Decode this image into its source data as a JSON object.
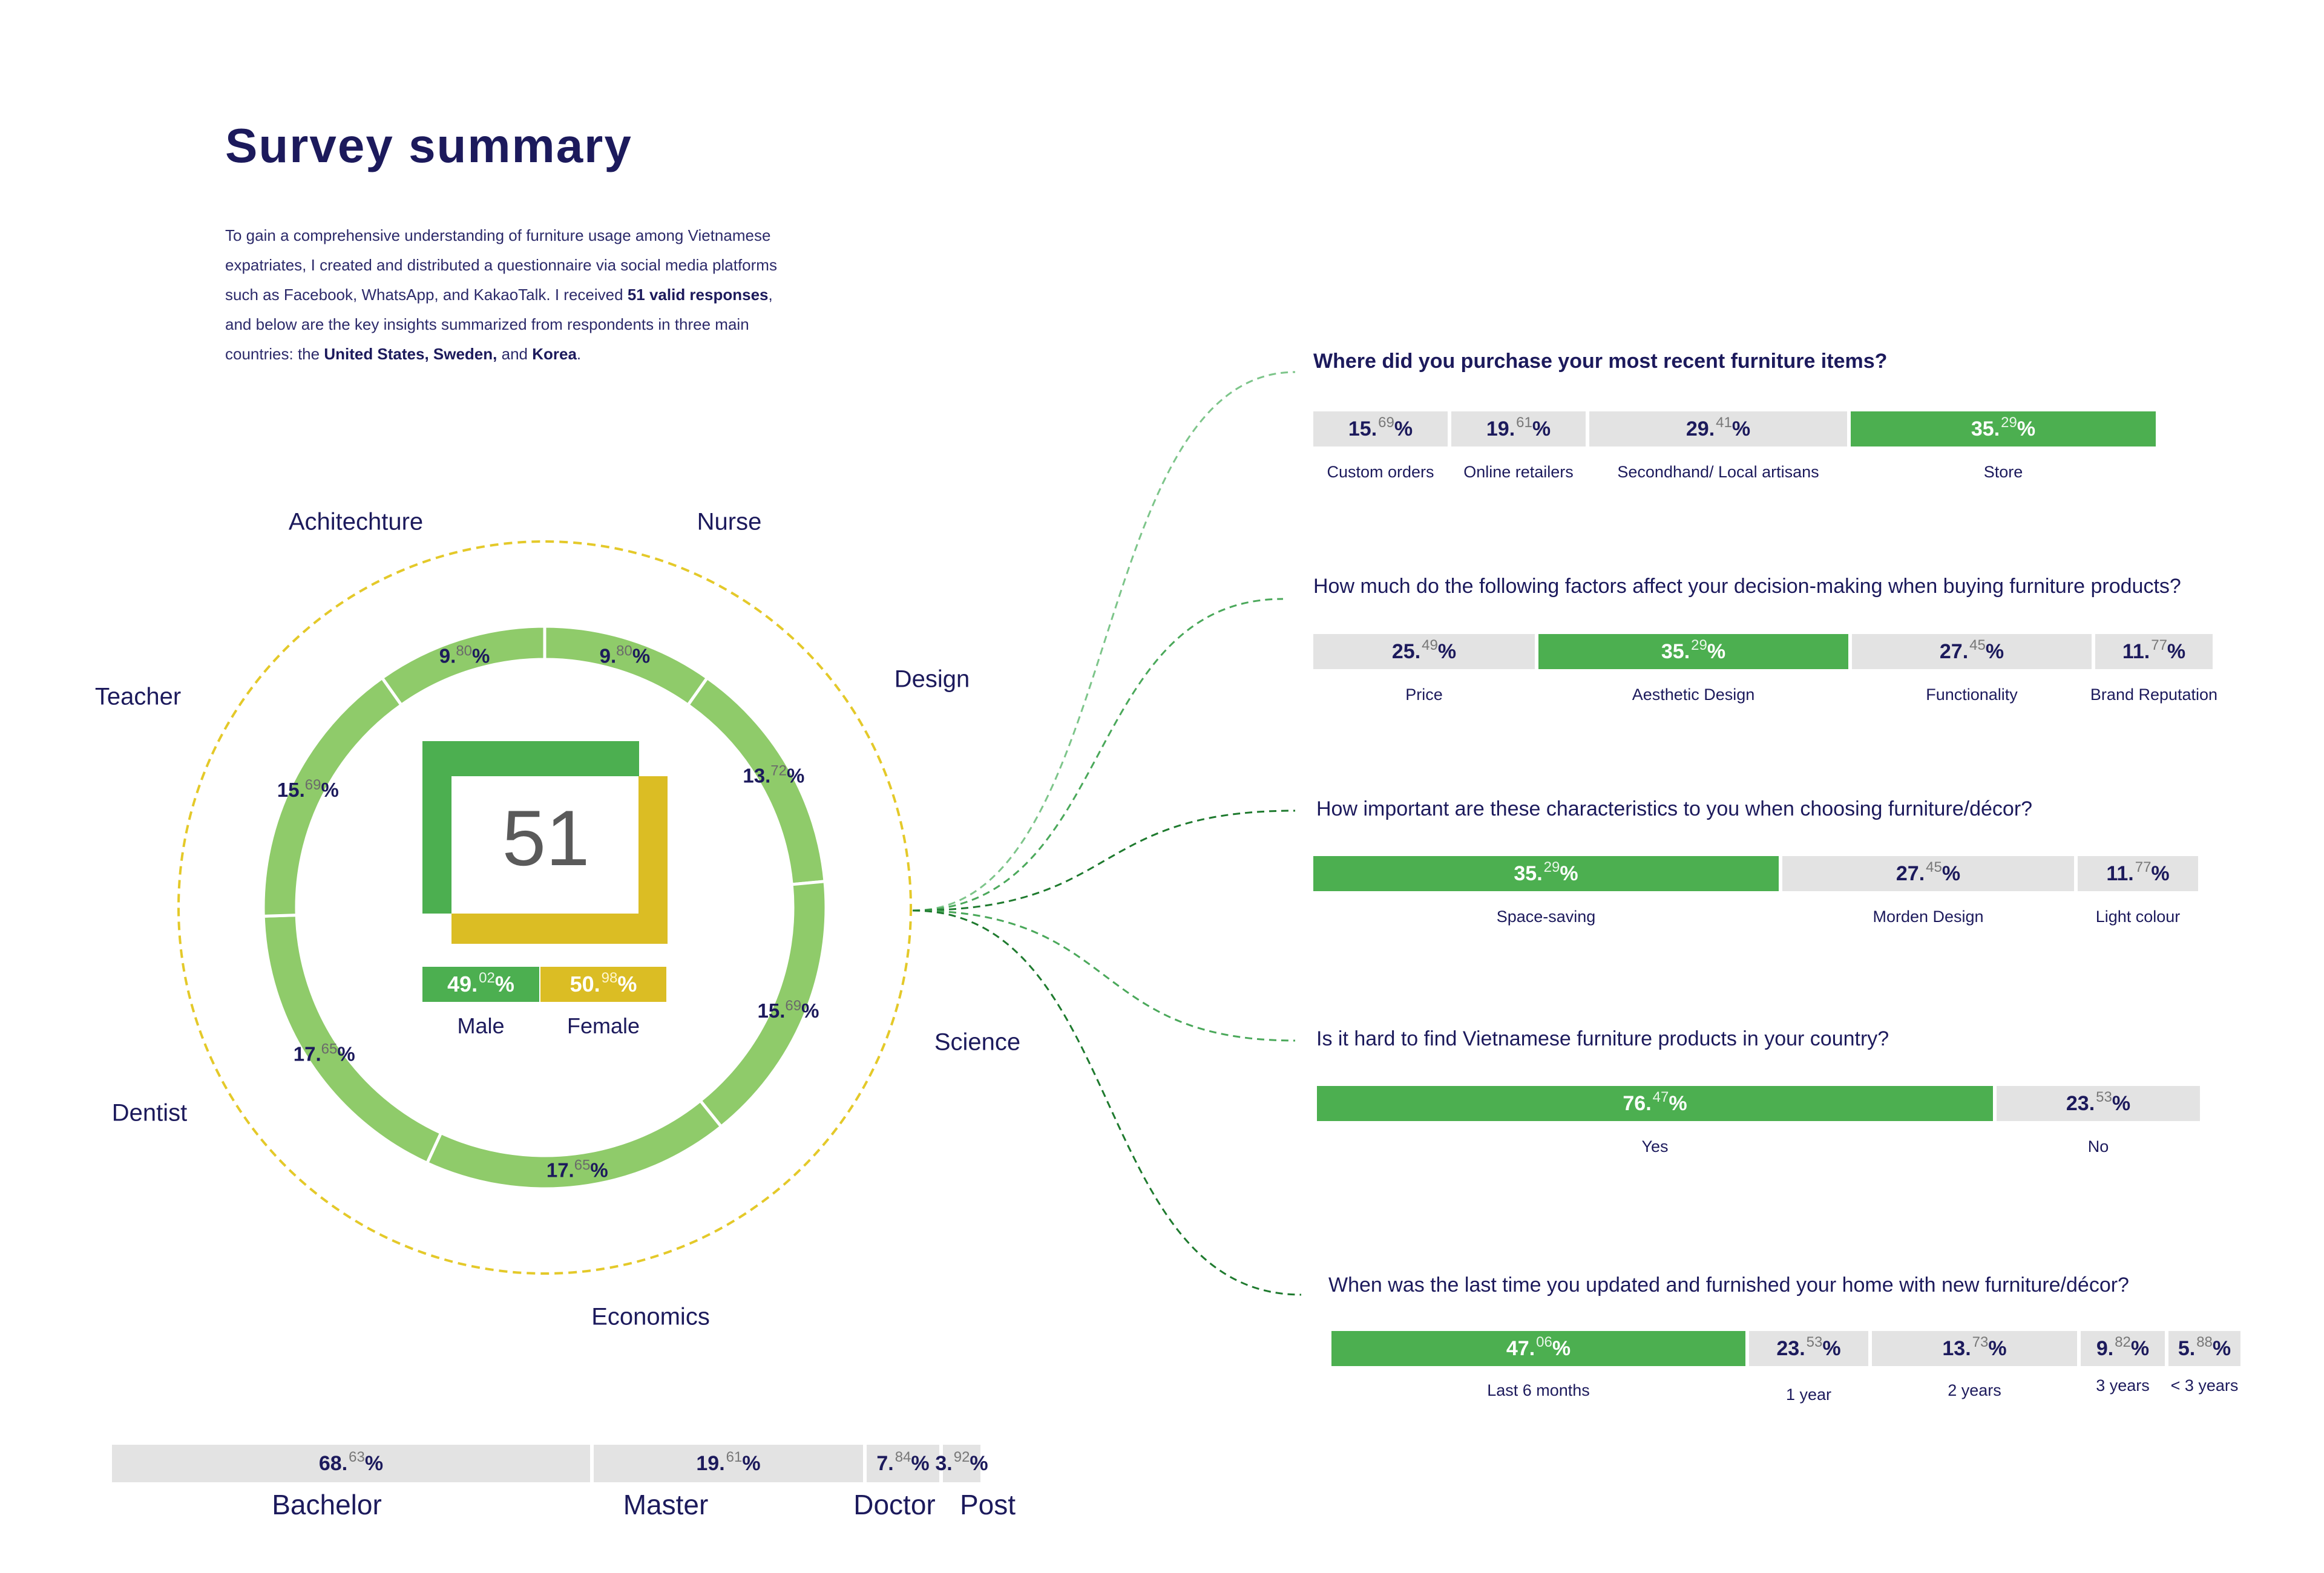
{
  "title": "Survey summary",
  "intro": {
    "p1": "To gain a comprehensive understanding of furniture usage among Vietnamese expatriates, I created and distributed a questionnaire via social media platforms such as Facebook, WhatsApp, and KakaoTalk. I received ",
    "b1": "51 valid responses",
    "p2": ", and below are the key insights summarized from respondents in three main countries: the ",
    "b2": "United States, Sweden,",
    "p3": " and ",
    "b3": "Korea",
    "p4": "."
  },
  "colors": {
    "green": "#4caf50",
    "ring": "#8fcb6a",
    "yellow": "#dbbd24",
    "grey": "#e3e3e3",
    "navy": "#1c1a5c"
  },
  "center": {
    "total": "51"
  },
  "chart_data": [
    {
      "type": "pie",
      "variant": "donut",
      "title": "",
      "slices": [
        {
          "label": "Nurse",
          "int": "9.",
          "dec": "80",
          "value": 9.8
        },
        {
          "label": "Design",
          "int": "13.",
          "dec": "72",
          "value": 13.72
        },
        {
          "label": "Science",
          "int": "15.",
          "dec": "69",
          "value": 15.69
        },
        {
          "label": "Economics",
          "int": "17.",
          "dec": "65",
          "value": 17.65
        },
        {
          "label": "Dentist",
          "int": "17.",
          "dec": "65",
          "value": 17.65
        },
        {
          "label": "Teacher",
          "int": "15.",
          "dec": "69",
          "value": 15.69
        },
        {
          "label": "Achitechture",
          "int": "9.",
          "dec": "80",
          "value": 9.8
        }
      ]
    },
    {
      "type": "bar",
      "orientation": "horizontal-stacked",
      "categories": [
        "Male",
        "Female"
      ],
      "values": [
        49.02,
        50.98
      ],
      "display": [
        {
          "int": "49.",
          "dec": "02"
        },
        {
          "int": "50.",
          "dec": "98"
        }
      ]
    },
    {
      "type": "bar",
      "orientation": "horizontal-stacked",
      "categories": [
        "Bachelor",
        "Master",
        "Doctor",
        "Post"
      ],
      "values": [
        68.63,
        19.61,
        7.84,
        3.92
      ],
      "display": [
        {
          "int": "68.",
          "dec": "63"
        },
        {
          "int": "19.",
          "dec": "61"
        },
        {
          "int": "7.",
          "dec": "84"
        },
        {
          "int": "3.",
          "dec": "92"
        }
      ]
    },
    {
      "type": "bar",
      "orientation": "horizontal-stacked",
      "title": "Where did you purchase your most recent furniture items?",
      "categories": [
        "Custom orders",
        "Online retailers",
        "Secondhand/ Local artisans",
        "Store"
      ],
      "values": [
        15.69,
        19.61,
        29.41,
        35.29
      ],
      "display": [
        {
          "int": "15.",
          "dec": "69"
        },
        {
          "int": "19.",
          "dec": "61"
        },
        {
          "int": "29.",
          "dec": "41"
        },
        {
          "int": "35.",
          "dec": "29"
        }
      ],
      "highlight": 3
    },
    {
      "type": "bar",
      "orientation": "horizontal-stacked",
      "title": "How much do the following factors affect your decision-making when buying furniture products?",
      "categories": [
        "Price",
        "Aesthetic Design",
        "Functionality",
        "Brand Reputation"
      ],
      "values": [
        25.49,
        35.29,
        27.45,
        11.77
      ],
      "display": [
        {
          "int": "25.",
          "dec": "49"
        },
        {
          "int": "35.",
          "dec": "29"
        },
        {
          "int": "27.",
          "dec": "45"
        },
        {
          "int": "11.",
          "dec": "77"
        }
      ],
      "highlight": 1
    },
    {
      "type": "bar",
      "orientation": "horizontal-stacked",
      "title": "How important are these characteristics to you when choosing furniture/décor?",
      "categories": [
        "Space-saving",
        "Morden Design",
        "Light colour"
      ],
      "values": [
        35.29,
        27.45,
        11.77
      ],
      "display": [
        {
          "int": "35.",
          "dec": "29"
        },
        {
          "int": "27.",
          "dec": "45"
        },
        {
          "int": "11.",
          "dec": "77"
        }
      ],
      "highlight": 0
    },
    {
      "type": "bar",
      "orientation": "horizontal-stacked",
      "title": "Is it hard to find Vietnamese furniture products in your country?",
      "categories": [
        "Yes",
        "No"
      ],
      "values": [
        76.47,
        23.53
      ],
      "display": [
        {
          "int": "76.",
          "dec": "47"
        },
        {
          "int": "23.",
          "dec": "53"
        }
      ],
      "highlight": 0
    },
    {
      "type": "bar",
      "orientation": "horizontal-stacked",
      "title": "When was the last time you updated and furnished your home with new furniture/décor?",
      "categories": [
        "Last 6 months",
        "1 year",
        "2 years",
        "3 years",
        "< 3 years"
      ],
      "values": [
        47.06,
        23.53,
        13.73,
        9.82,
        5.88
      ],
      "display": [
        {
          "int": "47.",
          "dec": "06"
        },
        {
          "int": "23.",
          "dec": "53"
        },
        {
          "int": "13.",
          "dec": "73"
        },
        {
          "int": "9.",
          "dec": "82"
        },
        {
          "int": "5.",
          "dec": "88"
        }
      ],
      "highlight": 0
    }
  ]
}
